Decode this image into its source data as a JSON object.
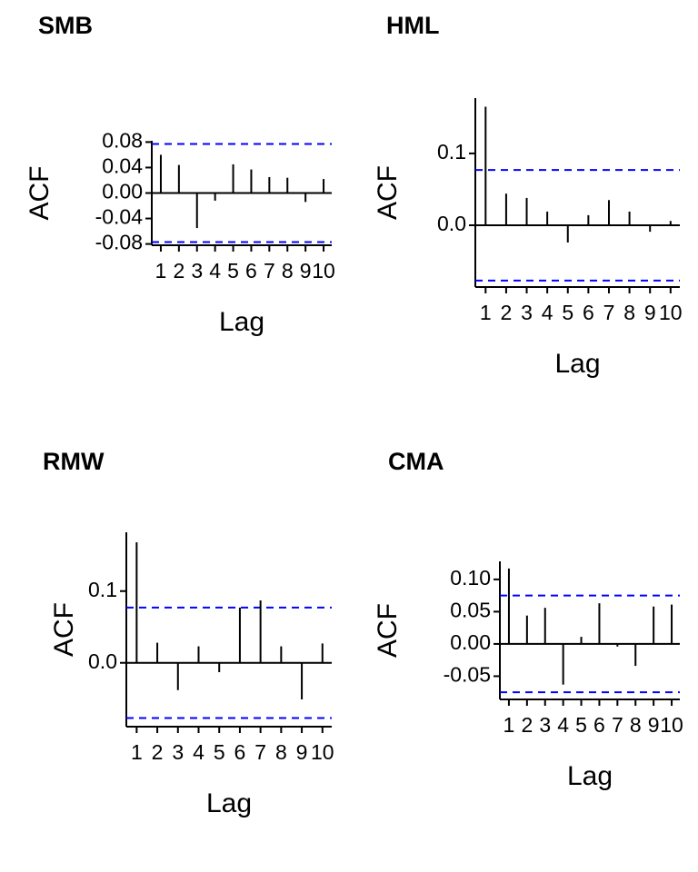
{
  "chart_data": [
    {
      "type": "bar",
      "title": "SMB",
      "xlabel": "Lag",
      "ylabel": "ACF",
      "x": [
        1,
        2,
        3,
        4,
        5,
        6,
        7,
        8,
        9,
        10
      ],
      "values": [
        0.06,
        0.044,
        -0.055,
        -0.012,
        0.045,
        0.037,
        0.025,
        0.024,
        -0.014,
        0.022
      ],
      "color": "#000000",
      "xlim": [
        0.5,
        10.45
      ],
      "xticks": [
        1,
        2,
        3,
        4,
        5,
        6,
        7,
        8,
        9,
        10
      ],
      "ylim": [
        -0.082,
        0.082
      ],
      "yticks": [
        {
          "value": -0.08,
          "label": "-0.08"
        },
        {
          "value": -0.04,
          "label": "-0.04"
        },
        {
          "value": 0,
          "label": "0.00"
        },
        {
          "value": 0.04,
          "label": "0.04"
        },
        {
          "value": 0.08,
          "label": "0.08"
        }
      ],
      "confidence_bounds": [
        0.077,
        -0.077
      ],
      "confidence_color": "#0000ff"
    },
    {
      "type": "bar",
      "title": "HML",
      "xlabel": "Lag",
      "ylabel": "ACF",
      "x": [
        1,
        2,
        3,
        4,
        5,
        6,
        7,
        8,
        9,
        10
      ],
      "values": [
        0.165,
        0.044,
        0.038,
        0.019,
        -0.024,
        0.014,
        0.035,
        0.019,
        -0.009,
        0.006
      ],
      "color": "#000000",
      "xlim": [
        0.5,
        10.45
      ],
      "xticks": [
        1,
        2,
        3,
        4,
        5,
        6,
        7,
        8,
        9,
        10
      ],
      "ylim": [
        -0.086,
        0.177
      ],
      "yticks": [
        {
          "value": 0,
          "label": "0.0"
        },
        0.1
      ],
      "confidence_bounds": [
        0.077,
        -0.077
      ],
      "confidence_color": "#0000ff"
    },
    {
      "type": "bar",
      "title": "RMW",
      "xlabel": "Lag",
      "ylabel": "ACF",
      "x": [
        1,
        2,
        3,
        4,
        5,
        6,
        7,
        8,
        9,
        10
      ],
      "values": [
        0.168,
        0.028,
        -0.038,
        0.023,
        -0.013,
        0.077,
        0.087,
        0.023,
        -0.051,
        0.027
      ],
      "color": "#000000",
      "xlim": [
        0.5,
        10.45
      ],
      "xticks": [
        1,
        2,
        3,
        4,
        5,
        6,
        7,
        8,
        9,
        10
      ],
      "ylim": [
        -0.089,
        0.182
      ],
      "yticks": [
        {
          "value": 0,
          "label": "0.0"
        },
        0.1
      ],
      "confidence_bounds": [
        0.077,
        -0.077
      ],
      "confidence_color": "#0000ff"
    },
    {
      "type": "bar",
      "title": "CMA",
      "xlabel": "Lag",
      "ylabel": "ACF",
      "x": [
        1,
        2,
        3,
        4,
        5,
        6,
        7,
        8,
        9,
        10
      ],
      "values": [
        0.117,
        0.044,
        0.056,
        -0.063,
        0.011,
        0.063,
        -0.004,
        -0.034,
        0.058,
        0.061
      ],
      "color": "#000000",
      "xlim": [
        0.5,
        10.45
      ],
      "xticks": [
        1,
        2,
        3,
        4,
        5,
        6,
        7,
        8,
        9,
        10
      ],
      "ylim": [
        -0.086,
        0.128
      ],
      "yticks": [
        {
          "value": -0.05,
          "label": "-0.05"
        },
        {
          "value": 0,
          "label": "0.00"
        },
        {
          "value": 0.05,
          "label": "0.05"
        },
        {
          "value": 0.1,
          "label": "0.10"
        }
      ],
      "confidence_bounds": [
        0.075,
        -0.075
      ],
      "confidence_color": "#0000ff"
    }
  ]
}
